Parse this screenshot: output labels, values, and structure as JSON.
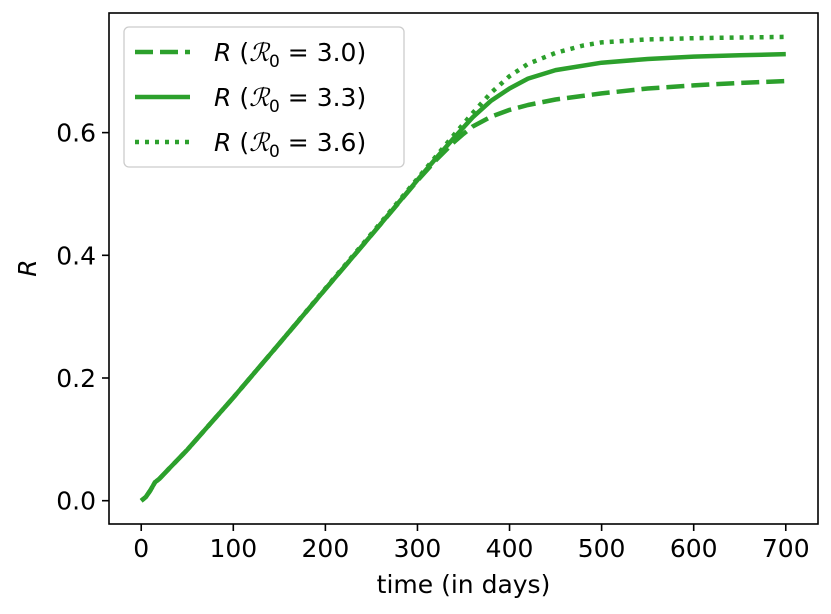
{
  "chart_data": {
    "type": "line",
    "xlabel": "time (in days)",
    "ylabel": "R",
    "xlim": [
      -35,
      735
    ],
    "ylim": [
      -0.038,
      0.795
    ],
    "xticks": [
      0,
      100,
      200,
      300,
      400,
      500,
      600,
      700
    ],
    "xtick_labels": [
      "0",
      "100",
      "200",
      "300",
      "400",
      "500",
      "600",
      "700"
    ],
    "yticks": [
      0.0,
      0.2,
      0.4,
      0.6
    ],
    "ytick_labels": [
      "0.0",
      "0.2",
      "0.4",
      "0.6"
    ],
    "grid": false,
    "legend_position": "top-left",
    "color": "#2ca02c",
    "series": [
      {
        "name": "R (ℛ0 = 3.0)",
        "legend_var": "R",
        "legend_sub": "0",
        "legend_value": "3.0",
        "line_style": "dashed",
        "x": [
          0,
          5,
          10,
          15,
          20,
          30,
          50,
          100,
          150,
          200,
          250,
          300,
          320,
          340,
          350,
          360,
          380,
          400,
          420,
          450,
          500,
          550,
          600,
          650,
          700
        ],
        "y": [
          0.0,
          0.006,
          0.017,
          0.03,
          0.036,
          0.052,
          0.083,
          0.168,
          0.256,
          0.345,
          0.433,
          0.522,
          0.555,
          0.585,
          0.598,
          0.61,
          0.626,
          0.637,
          0.645,
          0.654,
          0.664,
          0.672,
          0.677,
          0.681,
          0.684
        ]
      },
      {
        "name": "R (ℛ0 = 3.3)",
        "legend_var": "R",
        "legend_sub": "0",
        "legend_value": "3.3",
        "line_style": "solid",
        "x": [
          0,
          5,
          10,
          15,
          20,
          30,
          50,
          100,
          150,
          200,
          250,
          300,
          320,
          340,
          360,
          380,
          400,
          420,
          450,
          500,
          550,
          600,
          650,
          700
        ],
        "y": [
          0.0,
          0.006,
          0.017,
          0.03,
          0.036,
          0.052,
          0.083,
          0.168,
          0.256,
          0.345,
          0.433,
          0.523,
          0.558,
          0.592,
          0.625,
          0.652,
          0.672,
          0.688,
          0.702,
          0.714,
          0.72,
          0.724,
          0.726,
          0.728
        ]
      },
      {
        "name": "R (ℛ0 = 3.6)",
        "legend_var": "R",
        "legend_sub": "0",
        "legend_value": "3.6",
        "line_style": "dotted",
        "x": [
          0,
          5,
          10,
          15,
          20,
          30,
          50,
          100,
          150,
          200,
          250,
          300,
          320,
          340,
          360,
          380,
          400,
          420,
          450,
          480,
          500,
          550,
          600,
          650,
          700
        ],
        "y": [
          0.0,
          0.006,
          0.017,
          0.03,
          0.036,
          0.052,
          0.083,
          0.168,
          0.256,
          0.346,
          0.435,
          0.525,
          0.561,
          0.597,
          0.632,
          0.665,
          0.692,
          0.712,
          0.73,
          0.742,
          0.747,
          0.752,
          0.754,
          0.755,
          0.756
        ]
      }
    ]
  }
}
